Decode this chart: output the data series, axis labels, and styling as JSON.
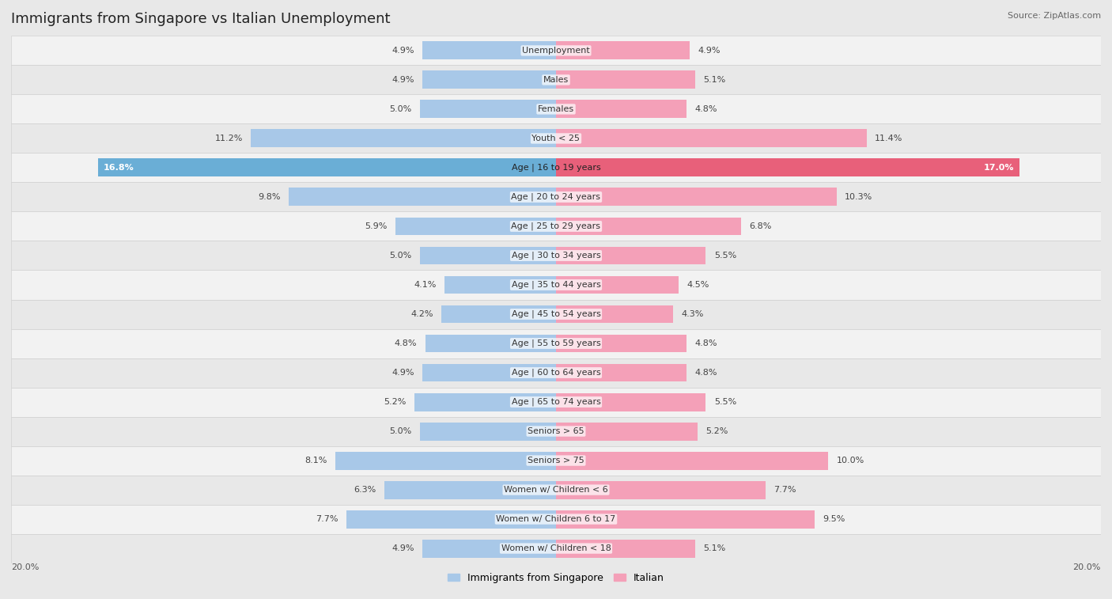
{
  "title": "Immigrants from Singapore vs Italian Unemployment",
  "source": "Source: ZipAtlas.com",
  "categories": [
    "Unemployment",
    "Males",
    "Females",
    "Youth < 25",
    "Age | 16 to 19 years",
    "Age | 20 to 24 years",
    "Age | 25 to 29 years",
    "Age | 30 to 34 years",
    "Age | 35 to 44 years",
    "Age | 45 to 54 years",
    "Age | 55 to 59 years",
    "Age | 60 to 64 years",
    "Age | 65 to 74 years",
    "Seniors > 65",
    "Seniors > 75",
    "Women w/ Children < 6",
    "Women w/ Children 6 to 17",
    "Women w/ Children < 18"
  ],
  "singapore_values": [
    4.9,
    4.9,
    5.0,
    11.2,
    16.8,
    9.8,
    5.9,
    5.0,
    4.1,
    4.2,
    4.8,
    4.9,
    5.2,
    5.0,
    8.1,
    6.3,
    7.7,
    4.9
  ],
  "italian_values": [
    4.9,
    5.1,
    4.8,
    11.4,
    17.0,
    10.3,
    6.8,
    5.5,
    4.5,
    4.3,
    4.8,
    4.8,
    5.5,
    5.2,
    10.0,
    7.7,
    9.5,
    5.1
  ],
  "singapore_color": "#a8c8e8",
  "italian_color": "#f4a0b8",
  "highlight_singapore_color": "#6aaed6",
  "highlight_italian_color": "#e8607a",
  "highlight_idx": 4,
  "axis_limit": 20.0,
  "bg_color": "#e8e8e8",
  "row_color_even": "#f2f2f2",
  "row_color_odd": "#e8e8e8",
  "title_fontsize": 13,
  "label_fontsize": 8,
  "value_fontsize": 8
}
